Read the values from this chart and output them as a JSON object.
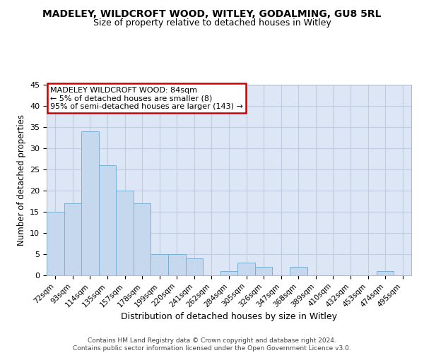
{
  "title": "MADELEY, WILDCROFT WOOD, WITLEY, GODALMING, GU8 5RL",
  "subtitle": "Size of property relative to detached houses in Witley",
  "xlabel": "Distribution of detached houses by size in Witley",
  "ylabel": "Number of detached properties",
  "bar_color": "#c5d8ee",
  "bar_edge_color": "#7aafd4",
  "categories": [
    "72sqm",
    "93sqm",
    "114sqm",
    "135sqm",
    "157sqm",
    "178sqm",
    "199sqm",
    "220sqm",
    "241sqm",
    "262sqm",
    "284sqm",
    "305sqm",
    "326sqm",
    "347sqm",
    "368sqm",
    "389sqm",
    "410sqm",
    "432sqm",
    "453sqm",
    "474sqm",
    "495sqm"
  ],
  "values": [
    15,
    17,
    34,
    26,
    20,
    17,
    5,
    5,
    4,
    0,
    1,
    3,
    2,
    0,
    2,
    0,
    0,
    0,
    0,
    1,
    0
  ],
  "ylim": [
    0,
    45
  ],
  "yticks": [
    0,
    5,
    10,
    15,
    20,
    25,
    30,
    35,
    40,
    45
  ],
  "annotation_title": "MADELEY WILDCROFT WOOD: 84sqm",
  "annotation_line2": "← 5% of detached houses are smaller (8)",
  "annotation_line3": "95% of semi-detached houses are larger (143) →",
  "annotation_box_facecolor": "#ffffff",
  "annotation_box_edgecolor": "#cc0000",
  "footer_line1": "Contains HM Land Registry data © Crown copyright and database right 2024.",
  "footer_line2": "Contains public sector information licensed under the Open Government Licence v3.0.",
  "background_color": "#ffffff",
  "plot_bg_color": "#dce6f5",
  "grid_color": "#c0cde0"
}
